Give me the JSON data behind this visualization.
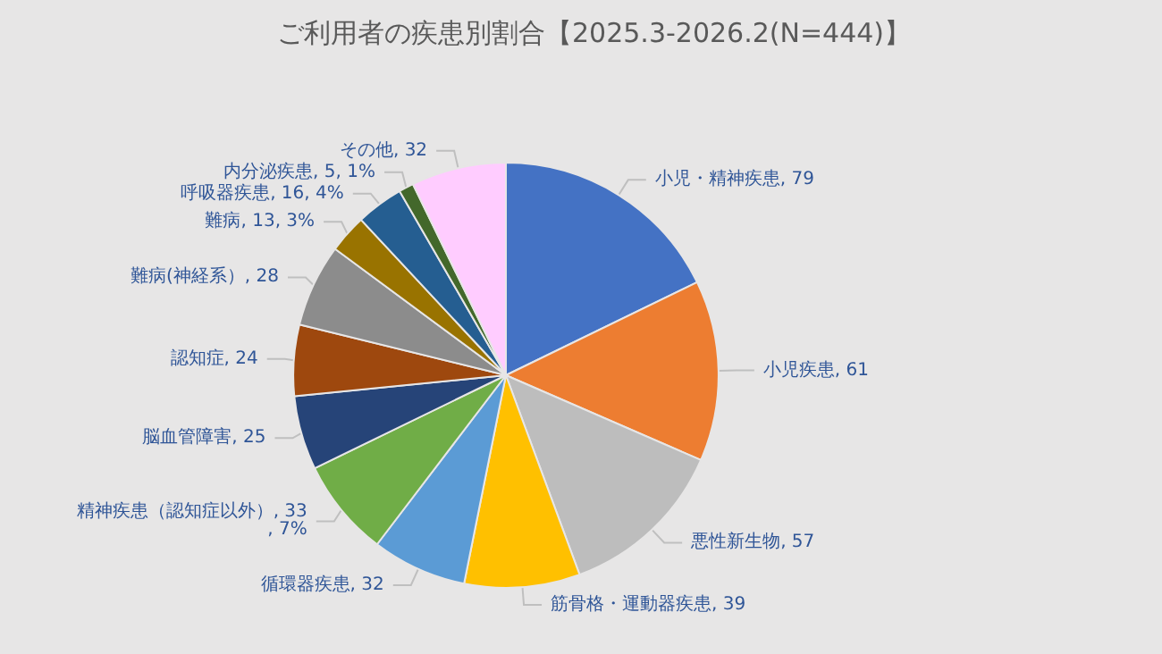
{
  "chart_data": {
    "type": "pie",
    "title": "ご利用者の疾患別割合【2025.3-2026.2(N=444)】",
    "categories": [
      "小児・精神疾患",
      "小児疾患",
      "悪性新生物",
      "筋骨格・運動器疾患",
      "循環器疾患",
      "精神疾患（認知症以外）",
      "脳血管障害",
      "認知症",
      "難病(神経系）",
      "難病",
      "呼吸器疾患",
      "内分泌疾患",
      "その他"
    ],
    "values": [
      79,
      61,
      57,
      39,
      32,
      33,
      25,
      24,
      28,
      13,
      16,
      5,
      32
    ],
    "value_labels": [
      "79",
      "61",
      "57",
      "39",
      "32",
      "33, 7%",
      "25",
      "24",
      "28",
      "13, 3%",
      "16, 4%",
      "5, 1%",
      "32"
    ],
    "colors": [
      "#4472c4",
      "#ed7d31",
      "#bdbdbd",
      "#ffc000",
      "#5b9bd5",
      "#70ad47",
      "#264478",
      "#9e480e",
      "#8c8c8c",
      "#997300",
      "#255e91",
      "#43682b",
      "#ffccff"
    ],
    "legend": false
  }
}
